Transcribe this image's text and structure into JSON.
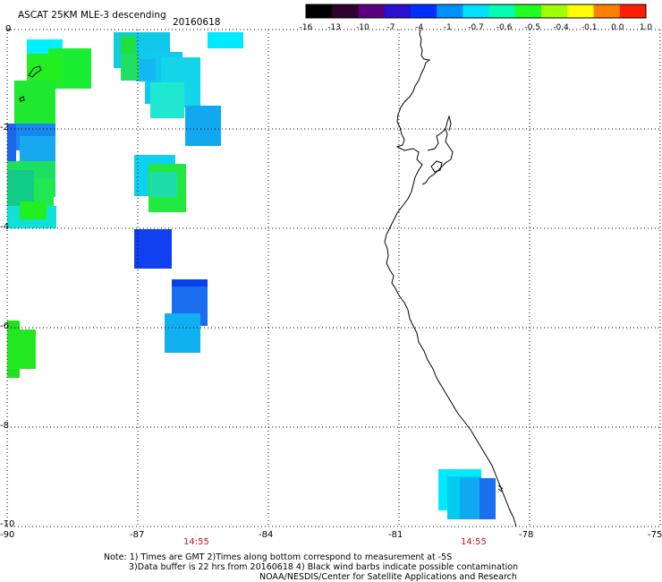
{
  "header": {
    "title": "ASCAT 25KM MLE-3 descending",
    "date": "20160618"
  },
  "colorbar": {
    "labels": [
      "-16",
      "-13",
      "-10",
      "-7",
      "-4",
      "-1",
      "-0.7",
      "-0.6",
      "-0.5",
      "-0.4",
      "-0.1",
      "0.0",
      "1.0"
    ],
    "colors": [
      "#000000",
      "#300030",
      "#5a0080",
      "#2a10d0",
      "#0030ff",
      "#0090ff",
      "#00e0ff",
      "#00ffb0",
      "#20ff20",
      "#a0ff00",
      "#ffff00",
      "#ff8000",
      "#ff2000"
    ]
  },
  "axes": {
    "lon_labels": [
      "-90",
      "-87",
      "-84",
      "-81",
      "-78",
      "-75"
    ],
    "lat_labels": [
      "0",
      "-2",
      "-4",
      "-6",
      "-8",
      "-10"
    ]
  },
  "times": [
    "14:55",
    "14:55"
  ],
  "notes": [
    "Note: 1) Times are GMT 2)Times along bottom correspond to measurement at -5S",
    "3)Data buffer is 22 hrs from 20160618 4) Black wind barbs indicate possible contamination",
    "NOAA/NESDIS/Center for Satellite Applications and Research"
  ]
}
